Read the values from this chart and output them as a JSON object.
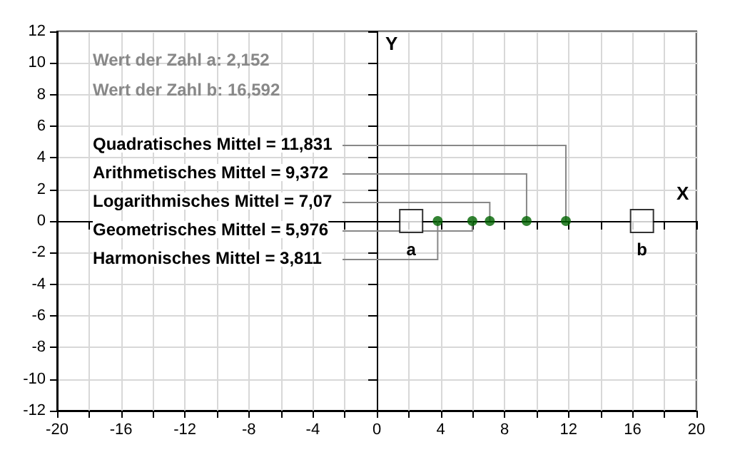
{
  "chart_data": {
    "type": "scatter",
    "xlabel": "X",
    "ylabel": "Y",
    "xlim": [
      -20,
      20
    ],
    "ylim": [
      -12,
      12
    ],
    "xticks": [
      -20,
      {
        "value": -18,
        "label": null
      },
      -16,
      {
        "value": -14,
        "label": null
      },
      -12,
      {
        "value": -10,
        "label": null
      },
      -8,
      {
        "value": -6,
        "label": null
      },
      -4,
      {
        "value": -2,
        "label": null
      },
      0,
      {
        "value": 2,
        "label": null
      },
      4,
      {
        "value": 6,
        "label": null
      },
      8,
      {
        "value": 10,
        "label": null
      },
      12,
      {
        "value": 14,
        "label": null
      },
      16,
      {
        "value": 18,
        "label": null
      },
      20
    ],
    "yticks": [
      -12,
      -10,
      -8,
      -6,
      -4,
      -2,
      0,
      2,
      4,
      6,
      8,
      10,
      12
    ],
    "grid": true,
    "series": [
      {
        "color": "#000000",
        "marker": "square",
        "x": [
          2.152,
          16.592
        ],
        "values": [
          0,
          0
        ]
      },
      {
        "color": "#006400",
        "marker": "circle",
        "x": [
          11.831,
          9.372,
          7.07,
          5.976,
          3.811
        ],
        "values": [
          0,
          0,
          0,
          0,
          0
        ]
      }
    ],
    "annotations": [
      "Wert der Zahl a: 2,152",
      "Wert der Zahl b: 16,592",
      {
        "text": "a",
        "x": 2.152,
        "y": 0
      },
      {
        "text": "b",
        "x": 16.592,
        "y": 0
      },
      {
        "text": "Quadratisches Mittel = 11,831",
        "x": 11.831,
        "y": 0
      },
      {
        "text": "Arithmetisches Mittel = 9,372",
        "x": 9.372,
        "y": 0
      },
      {
        "text": "Logarithmisches Mittel = 7,07",
        "x": 7.07,
        "y": 0
      },
      {
        "text": "Geometrisches Mittel = 5,976",
        "x": 5.976,
        "y": 0
      },
      {
        "text": "Harmonisches Mittel = 3,811",
        "x": 3.811,
        "y": 0
      }
    ]
  }
}
